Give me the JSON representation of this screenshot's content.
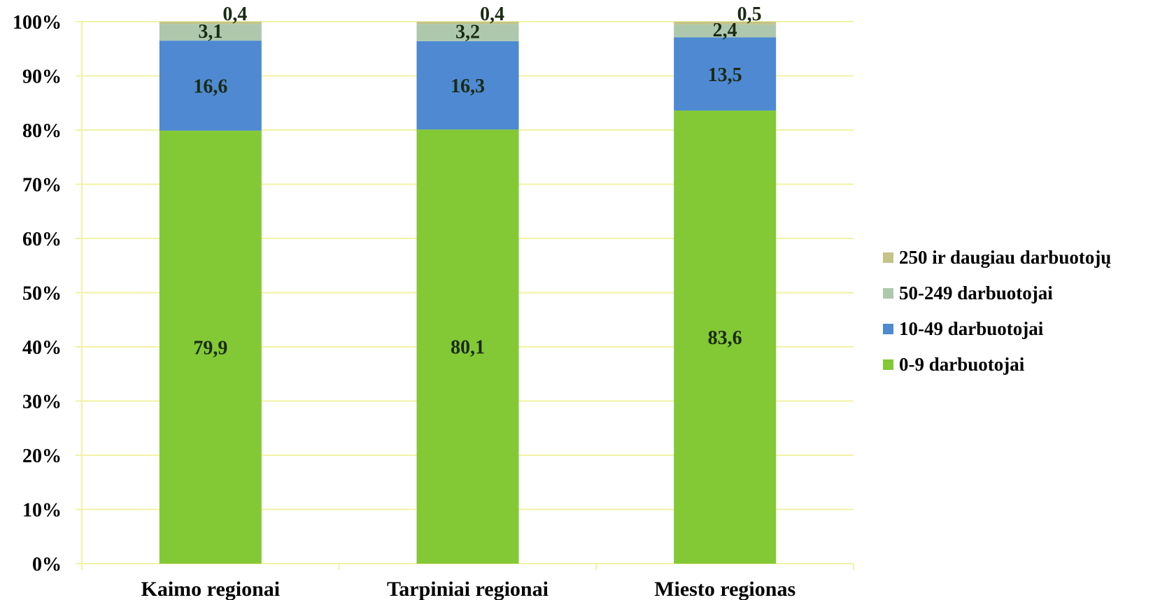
{
  "chart_data": {
    "type": "bar",
    "stacked": true,
    "percent_stacked": true,
    "categories": [
      "Kaimo regionai",
      "Tarpiniai regionai",
      "Miesto regionas"
    ],
    "series": [
      {
        "name": "0-9 darbuotojai",
        "values": [
          79.9,
          80.1,
          83.6
        ],
        "labels": [
          "79,9",
          "80,1",
          "83,6"
        ],
        "color": "#82c935"
      },
      {
        "name": "10-49 darbuotojai",
        "values": [
          16.6,
          16.3,
          13.5
        ],
        "labels": [
          "16,6",
          "16,3",
          "13,5"
        ],
        "color": "#4e89d2"
      },
      {
        "name": "50-249 darbuotojai",
        "values": [
          3.1,
          3.2,
          2.4
        ],
        "labels": [
          "3,1",
          "3,2",
          "2,4"
        ],
        "color": "#aec8ae"
      },
      {
        "name": "250 ir daugiau darbuotojų",
        "values": [
          0.4,
          0.4,
          0.5
        ],
        "labels": [
          "0,4",
          "0,4",
          "0,5"
        ],
        "color": "#c3c486"
      }
    ],
    "yticks": [
      "0%",
      "10%",
      "20%",
      "30%",
      "40%",
      "50%",
      "60%",
      "70%",
      "80%",
      "90%",
      "100%"
    ],
    "ylim": [
      0,
      100
    ],
    "grid": true,
    "grid_color": "#f2f2a6",
    "label_color": "#1a2b14",
    "legend_position": "right"
  }
}
